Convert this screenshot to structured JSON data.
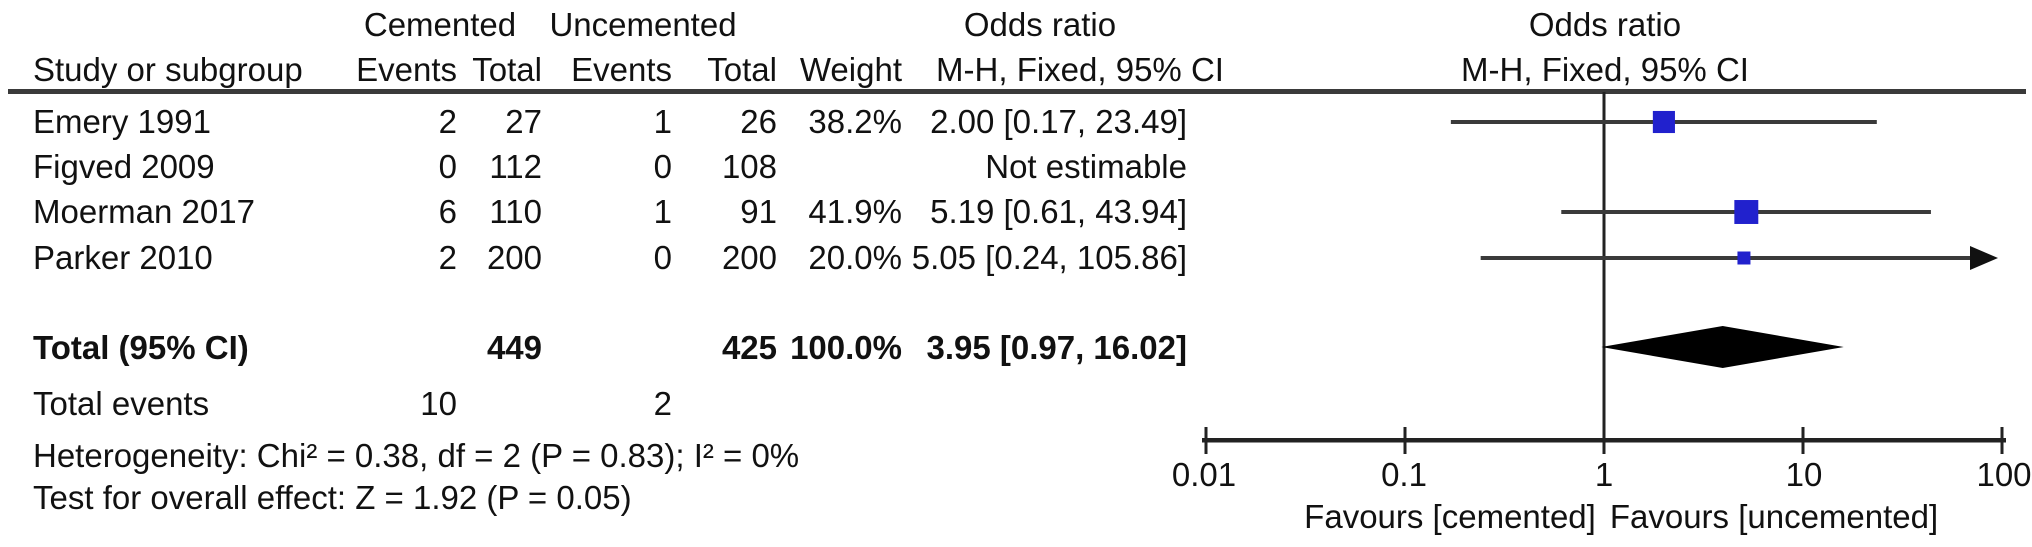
{
  "table": {
    "group1_header": "Cemented",
    "group2_header": "Uncemented",
    "or_col_title": "Odds ratio",
    "or_col_subtitle": "M-H, Fixed, 95% CI",
    "plot_title": "Odds ratio",
    "plot_subtitle": "M-H, Fixed, 95% CI",
    "col_study": "Study or subgroup",
    "col_events": "Events",
    "col_total": "Total",
    "col_weight": "Weight",
    "rows": [
      {
        "study": "Emery 1991",
        "e1": "2",
        "t1": "27",
        "e2": "1",
        "t2": "26",
        "weight": "38.2%",
        "or": "2.00 [0.17, 23.49]"
      },
      {
        "study": "Figved 2009",
        "e1": "0",
        "t1": "112",
        "e2": "0",
        "t2": "108",
        "weight": "",
        "or": "Not estimable"
      },
      {
        "study": "Moerman 2017",
        "e1": "6",
        "t1": "110",
        "e2": "1",
        "t2": "91",
        "weight": "41.9%",
        "or": "5.19 [0.61, 43.94]"
      },
      {
        "study": "Parker 2010",
        "e1": "2",
        "t1": "200",
        "e2": "0",
        "t2": "200",
        "weight": "20.0%",
        "or": "5.05 [0.24, 105.86]"
      }
    ],
    "total_row": {
      "label": "Total (95% CI)",
      "t1": "449",
      "t2": "425",
      "weight": "100.0%",
      "or": "3.95 [0.97, 16.02]"
    },
    "total_events_row": {
      "label": "Total events",
      "e1": "10",
      "e2": "2"
    },
    "heterogeneity": "Heterogeneity: Chi² = 0.38, df = 2 (P = 0.83); I² = 0%",
    "overall_effect": "Test for overall effect: Z = 1.92 (P = 0.05)"
  },
  "plot": {
    "tick_labels": [
      "0.01",
      "0.1",
      "1",
      "10",
      "100"
    ],
    "favours_left": "Favours [cemented]",
    "favours_right": "Favours [uncemented]",
    "marker_color": "#2121cd",
    "diamond_color": "#000000",
    "line_color": "#3a3a3a"
  },
  "chart_data": {
    "type": "scatter",
    "subtype": "forest-plot",
    "effect_measure": "Odds ratio, M-H, Fixed, 95% CI",
    "x_scale": "log10",
    "x_ticks": [
      0.01,
      0.1,
      1,
      10,
      100
    ],
    "xlim": [
      0.01,
      100
    ],
    "no_effect_line": 1,
    "axis_label_left": "Favours [cemented]",
    "axis_label_right": "Favours [uncemented]",
    "studies": [
      {
        "name": "Emery 1991",
        "events_cemented": 2,
        "total_cemented": 27,
        "events_uncemented": 1,
        "total_uncemented": 26,
        "weight_pct": 38.2,
        "or": 2.0,
        "ci_low": 0.17,
        "ci_high": 23.49
      },
      {
        "name": "Figved 2009",
        "events_cemented": 0,
        "total_cemented": 112,
        "events_uncemented": 0,
        "total_uncemented": 108,
        "weight_pct": null,
        "or": null,
        "ci_low": null,
        "ci_high": null,
        "note": "Not estimable"
      },
      {
        "name": "Moerman 2017",
        "events_cemented": 6,
        "total_cemented": 110,
        "events_uncemented": 1,
        "total_uncemented": 91,
        "weight_pct": 41.9,
        "or": 5.19,
        "ci_low": 0.61,
        "ci_high": 43.94
      },
      {
        "name": "Parker 2010",
        "events_cemented": 2,
        "total_cemented": 200,
        "events_uncemented": 0,
        "total_uncemented": 200,
        "weight_pct": 20.0,
        "or": 5.05,
        "ci_low": 0.24,
        "ci_high": 105.86
      }
    ],
    "total": {
      "or": 3.95,
      "ci_low": 0.97,
      "ci_high": 16.02,
      "total_cemented": 449,
      "total_uncemented": 425,
      "weight_pct": 100.0,
      "total_events_cemented": 10,
      "total_events_uncemented": 2,
      "heterogeneity": {
        "chi2": 0.38,
        "df": 2,
        "p": 0.83,
        "i2_pct": 0
      },
      "overall_effect": {
        "z": 1.92,
        "p": 0.05
      }
    }
  }
}
